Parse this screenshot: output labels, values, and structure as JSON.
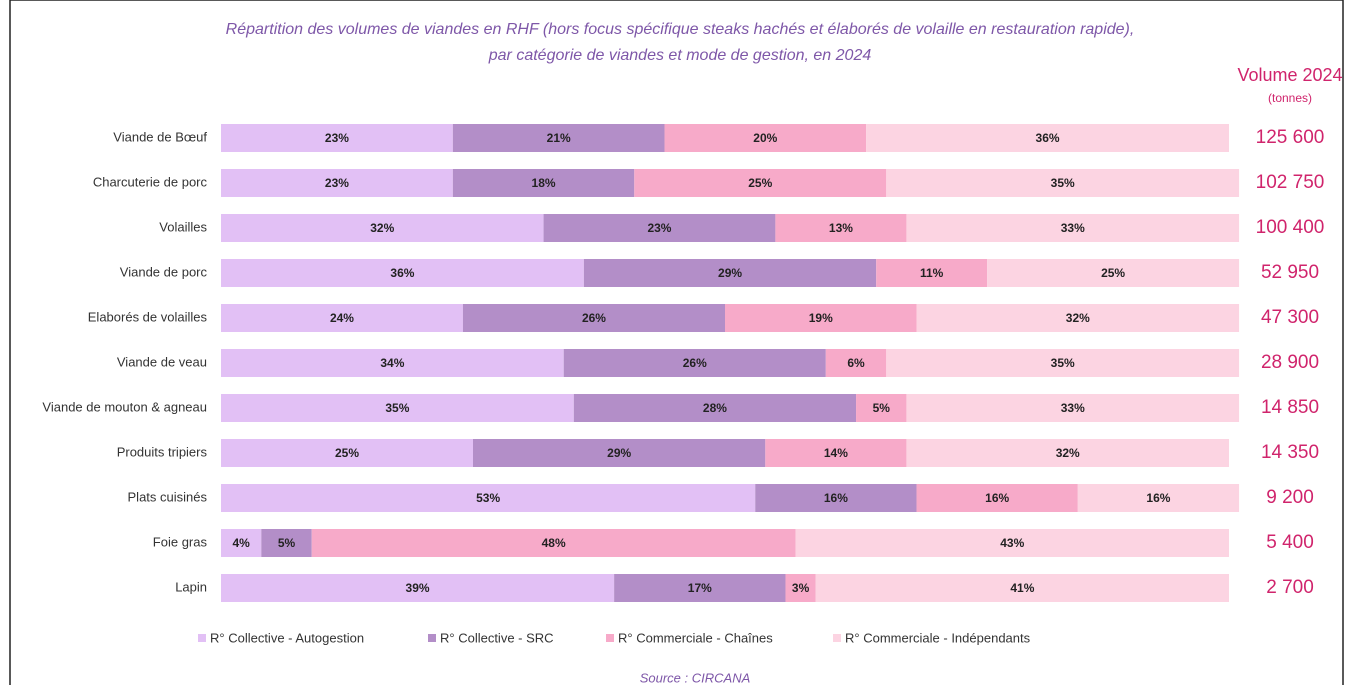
{
  "chart_data": {
    "type": "stacked-barh",
    "title": [
      "Répartition des volumes de viandes en RHF (hors focus spécifique steaks hachés et élaborés de volaille en restauration rapide),",
      "par catégorie de viandes et mode de gestion, en 2024"
    ],
    "volume_title": "Volume 2024",
    "volume_unit": "(tonnes)",
    "source": "Source : CIRCANA",
    "categories": [
      "Viande de Bœuf",
      "Charcuterie de porc",
      "Volailles",
      "Viande de porc",
      "Elaborés de volailles",
      "Viande de veau",
      "Viande de mouton & agneau",
      "Produits tripiers",
      "Plats cuisinés",
      "Foie gras",
      "Lapin"
    ],
    "xlim": [
      0,
      100
    ],
    "series": [
      {
        "name": "R° Collective - Autogestion",
        "color": "#e2c0f5",
        "values": [
          23,
          23,
          32,
          36,
          24,
          34,
          35,
          25,
          53,
          4,
          39
        ],
        "value_labels": [
          "23%",
          "23%",
          "32%",
          "36%",
          "24%",
          "34%",
          "35%",
          "25%",
          "53%",
          "4%",
          "39%"
        ]
      },
      {
        "name": "R° Collective - SRC",
        "color": "#b38ec8",
        "values": [
          21,
          18,
          23,
          29,
          26,
          26,
          28,
          29,
          16,
          5,
          17
        ],
        "value_labels": [
          "21%",
          "18%",
          "23%",
          "29%",
          "26%",
          "26%",
          "28%",
          "29%",
          "16%",
          "5%",
          "17%"
        ]
      },
      {
        "name": "R° Commerciale - Chaînes",
        "color": "#f7aac9",
        "values": [
          20,
          25,
          13,
          11,
          19,
          6,
          5,
          14,
          16,
          48,
          3
        ],
        "value_labels": [
          "20%",
          "25%",
          "13%",
          "11%",
          "19%",
          "6%",
          "5%",
          "14%",
          "16%",
          "48%",
          "3%"
        ]
      },
      {
        "name": "R° Commerciale - Indépendants",
        "color": "#fcd4e2",
        "values": [
          36,
          35,
          33,
          25,
          32,
          35,
          33,
          32,
          16,
          43,
          41
        ],
        "value_labels": [
          "36%",
          "35%",
          "33%",
          "25%",
          "32%",
          "35%",
          "33%",
          "32%",
          "16%",
          "43%",
          "41%"
        ]
      }
    ],
    "volumes": [
      125600,
      102750,
      100400,
      52950,
      47300,
      28900,
      14850,
      14350,
      9200,
      5400,
      2700
    ],
    "volume_labels": [
      "125 600",
      "102 750",
      "100 400",
      "52 950",
      "47 300",
      "28 900",
      "14 850",
      "14 350",
      "9 200",
      "5 400",
      "2 700"
    ]
  }
}
